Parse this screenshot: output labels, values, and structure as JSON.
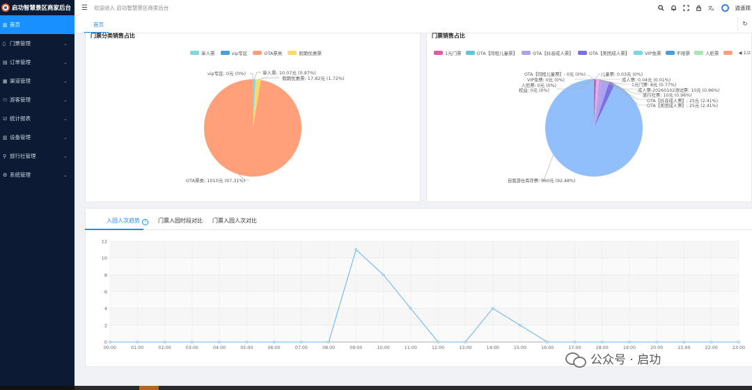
{
  "app": {
    "title": "启功智慧景区商家后台"
  },
  "topbar": {
    "welcome": "欢迎进入 启功智慧景区商家后台",
    "username": "逍遥观"
  },
  "sidebar": {
    "items": [
      {
        "label": "首页",
        "icon": "chart-icon",
        "active": true,
        "has_children": false
      },
      {
        "label": "门票管理",
        "icon": "doc-icon",
        "active": false,
        "has_children": true
      },
      {
        "label": "订单管理",
        "icon": "list-icon",
        "active": false,
        "has_children": true
      },
      {
        "label": "渠道管理",
        "icon": "grid-icon",
        "active": false,
        "has_children": true
      },
      {
        "label": "游客管理",
        "icon": "user-icon",
        "active": false,
        "has_children": true
      },
      {
        "label": "统计报表",
        "icon": "report-icon",
        "active": false,
        "has_children": true
      },
      {
        "label": "设备管理",
        "icon": "device-icon",
        "active": false,
        "has_children": true
      },
      {
        "label": "旅行社管理",
        "icon": "org-icon",
        "active": false,
        "has_children": true
      },
      {
        "label": "系统管理",
        "icon": "gear-icon",
        "active": false,
        "has_children": true
      }
    ]
  },
  "tabs": {
    "home": "首页"
  },
  "panels": {
    "left": {
      "title": "门票分类销售占比",
      "legend": [
        {
          "label": "单人票",
          "color": "#7dd8e0"
        },
        {
          "label": "vip专区",
          "color": "#4a9fd8"
        },
        {
          "label": "OTA票类",
          "color": "#ffa07a"
        },
        {
          "label": "假期优惠票",
          "color": "#ffd966"
        }
      ],
      "labels": {
        "vip": "vip专区: 0元 (0%)",
        "single": "单人票: 10.07元 (0.97%)",
        "holiday": "假期优惠票: 17.82元 (1.72%)",
        "ota": "OTA票类: 1010元 (97.31%)"
      }
    },
    "right": {
      "title": "门票销售占比",
      "legend": [
        {
          "label": "1元门票",
          "color": "#e05aa8"
        },
        {
          "label": "OTA【同程儿童票】",
          "color": "#5bc8d8"
        },
        {
          "label": "OTA【抖音成人票】",
          "color": "#a9a3f0"
        },
        {
          "label": "OTA【美团成人票】",
          "color": "#7b70e0"
        },
        {
          "label": "VIP免票",
          "color": "#7dd8e0"
        },
        {
          "label": "不限票",
          "color": "#4a9fd8"
        },
        {
          "label": "人脸票",
          "color": "#a8e6b0"
        },
        {
          "label": "",
          "color": "#ffa07a"
        }
      ],
      "pager": "1/2",
      "labels": {
        "l1": "OTA【同程儿童票】: 0元 (0%)",
        "l2": "VIP免票: 0元 (0%)",
        "l3": "人脸票: 0元 (0%)",
        "l4": "权益: 0元 (0%)",
        "r1": "儿童票: 0.03元 (0%)",
        "r2": "成人票: 0.04元 (0.01%)",
        "r3": "1元门票: 8元 (0.77%)",
        "r4": "成人票-20260102测试票: 10元 (0.96%)",
        "r5": "旅行社票: 10元 (0.96%)",
        "r6": "OTA【抖音成人票】: 25元 (2.41%)",
        "r7": "OTA【美团成人票】: 25元 (2.41%)",
        "bottom": "自我游仓库存票: 960元 (92.48%)"
      }
    }
  },
  "chart_tabs": {
    "tab1": "入园人次趋势",
    "tab2": "门票入园时段对比",
    "tab3": "门票入园人次对比"
  },
  "chart_data": {
    "type": "line",
    "x": [
      "00:00",
      "01:00",
      "02:00",
      "03:00",
      "04:00",
      "05:00",
      "06:00",
      "07:00",
      "08:00",
      "09:00",
      "10:00",
      "11:00",
      "12:00",
      "13:00",
      "14:00",
      "15:00",
      "16:00",
      "17:00",
      "18:00",
      "19:00",
      "20:00",
      "21:00",
      "22:00",
      "23:00"
    ],
    "series": [
      {
        "values": [
          0,
          0,
          0,
          0,
          0,
          0,
          0,
          0,
          0,
          11,
          8,
          4,
          0,
          0,
          4,
          2,
          0,
          0,
          0,
          0,
          0,
          0,
          0,
          0
        ],
        "color": "#6cb6ee"
      }
    ],
    "ylim": [
      0,
      12
    ],
    "yticks": [
      0,
      2,
      4,
      6,
      8,
      10,
      12
    ],
    "grid": true
  },
  "watermark": {
    "text": "公众号 · 启功"
  }
}
